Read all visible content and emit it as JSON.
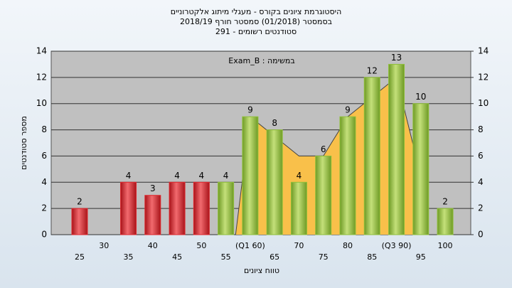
{
  "chart_data": {
    "type": "bar",
    "title": "היסטוגרמת ציונים בקורס - מעגלי מיתוג אלקטרוניים",
    "subtitle": "בסמסטר (01/2018) סמסטר חורף 2018/19",
    "subtitle2": "סטודנטים רשומים - 291",
    "annotation": "במשימה : Exam_B",
    "ylabel": "מספר סטודנטים",
    "xlabel": "טווח ציונים",
    "categories": [
      "25",
      "30",
      "35",
      "40",
      "45",
      "50",
      "55",
      "(Q1 60)",
      "65",
      "70",
      "75",
      "80",
      "85",
      "(Q3 90)",
      "95",
      "100"
    ],
    "values": [
      2,
      null,
      4,
      3,
      4,
      4,
      4,
      9,
      8,
      4,
      6,
      9,
      12,
      13,
      10,
      2
    ],
    "colors": [
      "#e0262c",
      "#e0262c",
      "#e0262c",
      "#e0262c",
      "#e0262c",
      "#e0262c",
      "#8fbf3a",
      "#8fbf3a",
      "#8fbf3a",
      "#8fbf3a",
      "#8fbf3a",
      "#8fbf3a",
      "#8fbf3a",
      "#8fbf3a",
      "#8fbf3a",
      "#8fbf3a"
    ],
    "area": {
      "color": "#f9c04a",
      "x": [
        57,
        60,
        65,
        70,
        75,
        80,
        85,
        90,
        95
      ],
      "values": [
        0,
        9,
        7.5,
        6,
        6,
        9,
        10.5,
        12,
        4.5
      ]
    },
    "ylim": [
      0,
      14
    ],
    "yticks": [
      0,
      2,
      4,
      6,
      8,
      10,
      12,
      14
    ],
    "y2lim": [
      0,
      14
    ],
    "y2ticks": [
      0,
      2,
      4,
      6,
      8,
      10,
      12,
      14
    ],
    "grid": true
  }
}
